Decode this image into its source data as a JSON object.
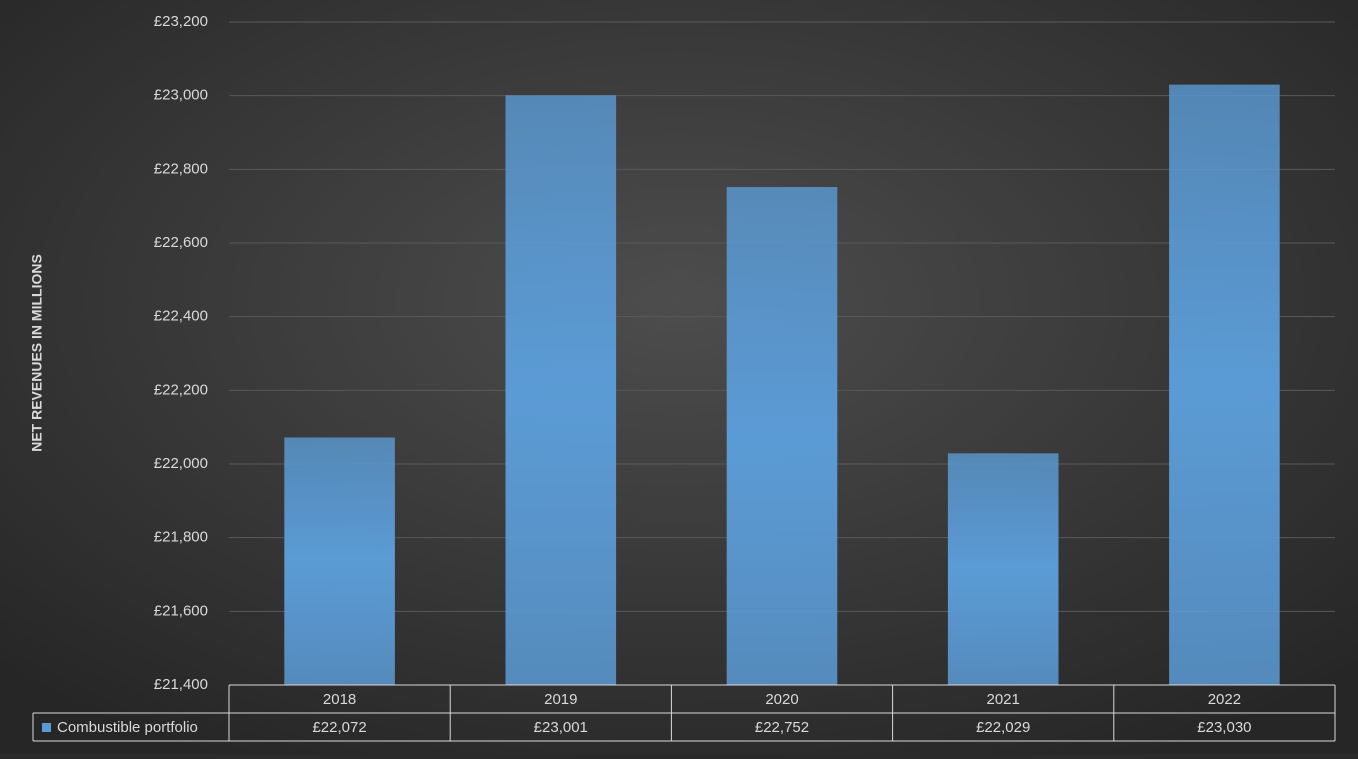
{
  "chart_data": {
    "type": "bar",
    "y_label": "NET REVENUES IN MILLIONS",
    "categories": [
      "2018",
      "2019",
      "2020",
      "2021",
      "2022"
    ],
    "series": [
      {
        "name": "Combustible portfolio",
        "color": "#5b9bd5",
        "values": [
          22072,
          23001,
          22752,
          22029,
          23030
        ],
        "value_labels": [
          "£22,072",
          "£23,001",
          "£22,752",
          "£22,029",
          "£23,030"
        ]
      }
    ],
    "ylim": [
      21400,
      23200
    ],
    "yticks": [
      {
        "value": 21400,
        "label": "£21,400"
      },
      {
        "value": 21600,
        "label": "£21,600"
      },
      {
        "value": 21800,
        "label": "£21,800"
      },
      {
        "value": 22000,
        "label": "£22,000"
      },
      {
        "value": 22200,
        "label": "£22,200"
      },
      {
        "value": 22400,
        "label": "£22,400"
      },
      {
        "value": 22600,
        "label": "£22,600"
      },
      {
        "value": 22800,
        "label": "£22,800"
      },
      {
        "value": 23000,
        "label": "£23,000"
      },
      {
        "value": 23200,
        "label": "£23,200"
      }
    ],
    "grid": true
  }
}
